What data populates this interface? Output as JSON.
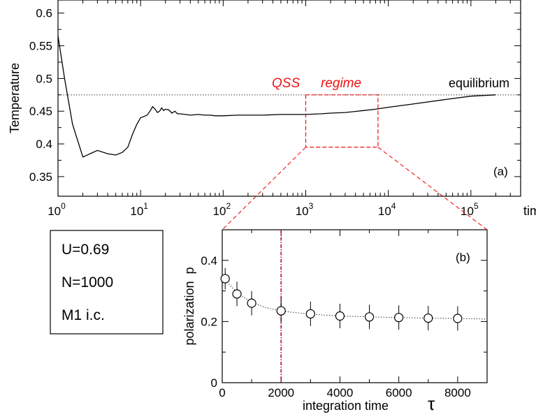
{
  "chart_data": [
    {
      "id": "a",
      "type": "line",
      "panel_label": "(a)",
      "xlabel": "time",
      "ylabel": "Temperature",
      "x_scale": "log",
      "xlim": [
        1,
        400000
      ],
      "ylim": [
        0.32,
        0.62
      ],
      "x_tick_bases": [
        "10",
        "10",
        "10",
        "10",
        "10",
        "10"
      ],
      "x_tick_exps": [
        "0",
        "1",
        "2",
        "3",
        "4",
        "5"
      ],
      "y_ticks": [
        "0.35",
        "0.4",
        "0.45",
        "0.5",
        "0.55",
        "0.6"
      ],
      "equilibrium_value": 0.475,
      "equilibrium_label": "equilibrium",
      "regime_labels": [
        "QSS",
        "regime"
      ],
      "qss_box": {
        "x": [
          1000,
          7500
        ],
        "y": [
          0.395,
          0.475
        ]
      },
      "series": [
        {
          "x": [
            1,
            1.2,
            1.5,
            2,
            3,
            4,
            5,
            6,
            7,
            8,
            9,
            10,
            11,
            12,
            13,
            14,
            15,
            16,
            17,
            18,
            19,
            20,
            22,
            24,
            26,
            28,
            30,
            35,
            40,
            50,
            60,
            70,
            80,
            100,
            150,
            200,
            300,
            500,
            700,
            1000,
            1500,
            2000,
            3000,
            5000,
            7000,
            10000,
            20000,
            50000,
            100000,
            200000
          ],
          "y": [
            0.565,
            0.5,
            0.43,
            0.38,
            0.39,
            0.385,
            0.383,
            0.387,
            0.395,
            0.415,
            0.43,
            0.44,
            0.442,
            0.444,
            0.45,
            0.457,
            0.453,
            0.448,
            0.45,
            0.455,
            0.451,
            0.453,
            0.452,
            0.447,
            0.45,
            0.446,
            0.446,
            0.445,
            0.444,
            0.445,
            0.444,
            0.444,
            0.443,
            0.443,
            0.444,
            0.444,
            0.444,
            0.445,
            0.445,
            0.445,
            0.446,
            0.447,
            0.448,
            0.451,
            0.453,
            0.456,
            0.461,
            0.468,
            0.473,
            0.475
          ]
        }
      ]
    },
    {
      "id": "b",
      "type": "scatter",
      "panel_label": "(b)",
      "xlabel": "integration time",
      "xsymbol": "τ",
      "ylabel": "polarization  p",
      "xlim": [
        0,
        9000
      ],
      "ylim": [
        0,
        0.5
      ],
      "x_ticks": [
        "0",
        "2000",
        "4000",
        "6000",
        "8000"
      ],
      "y_ticks": [
        "0",
        "0.2",
        "0.4"
      ],
      "vline_x": 2000,
      "series": [
        {
          "x": [
            100,
            500,
            1000,
            2000,
            3000,
            4000,
            5000,
            6000,
            7000,
            8000
          ],
          "y": [
            0.34,
            0.29,
            0.26,
            0.235,
            0.225,
            0.218,
            0.215,
            0.213,
            0.211,
            0.21
          ],
          "error": [
            0.035,
            0.04,
            0.04,
            0.04,
            0.04,
            0.04,
            0.04,
            0.04,
            0.04,
            0.04
          ]
        }
      ],
      "fit_curve": {
        "x": [
          100,
          500,
          1000,
          1500,
          2000,
          3000,
          4000,
          5000,
          6000,
          7000,
          8000,
          9000
        ],
        "y": [
          0.335,
          0.295,
          0.262,
          0.245,
          0.234,
          0.224,
          0.218,
          0.215,
          0.213,
          0.211,
          0.21,
          0.208
        ]
      }
    }
  ],
  "params": [
    "U=0.69",
    "N=1000",
    "M1 i.c."
  ],
  "colors": {
    "red": "#ee1111",
    "axis": "#000000"
  }
}
